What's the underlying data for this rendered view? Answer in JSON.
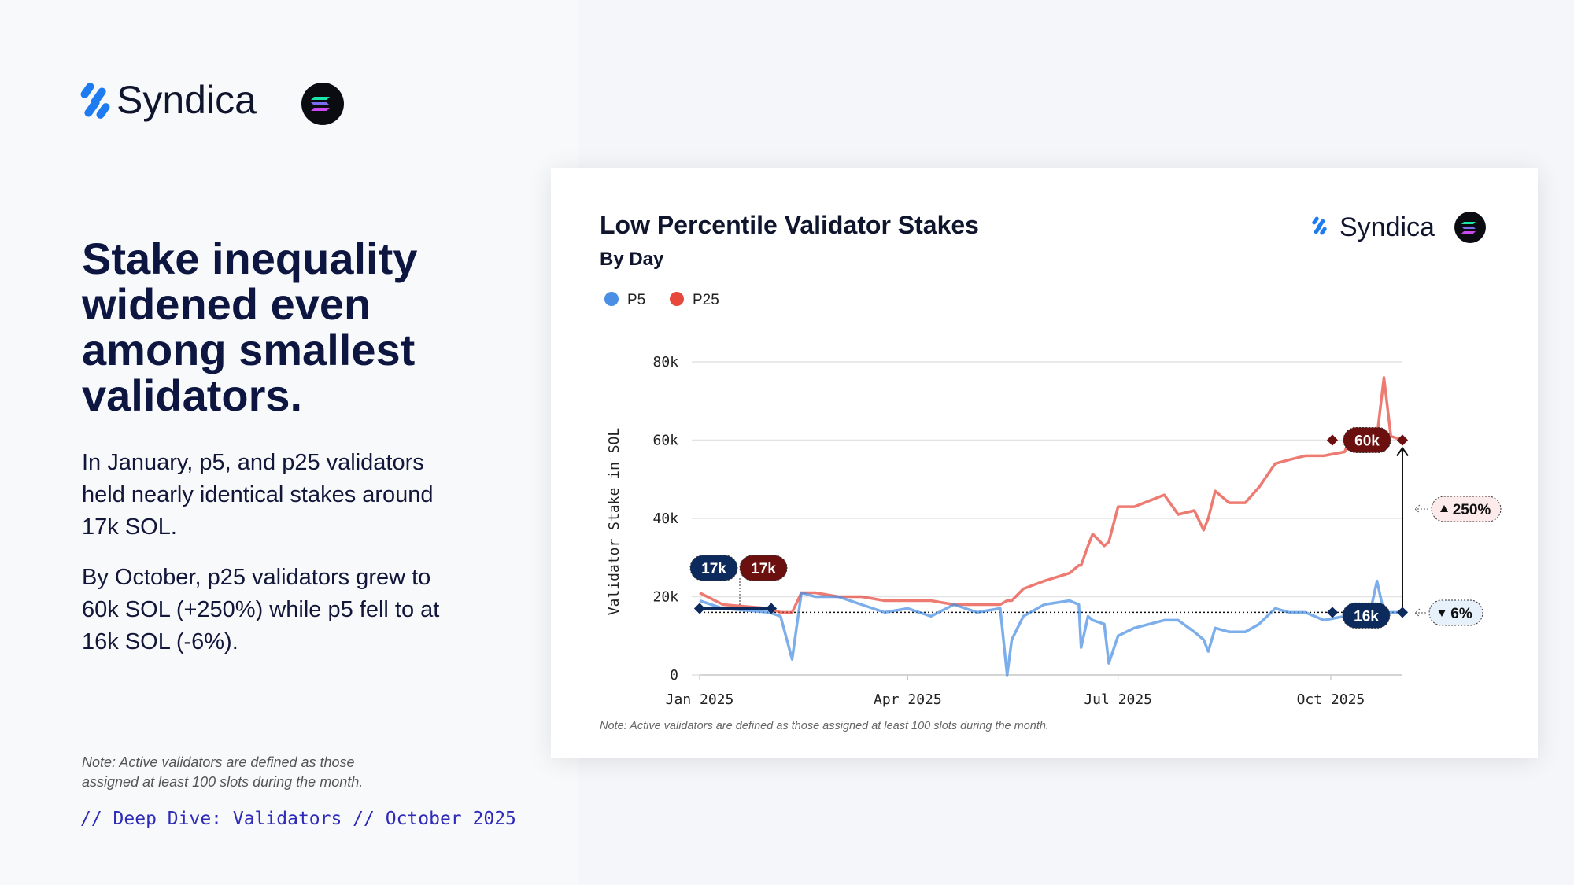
{
  "brand": {
    "name": "Syndica"
  },
  "headline": [
    "Stake inequality",
    "widened even",
    "among smallest",
    "validators."
  ],
  "paragraphs": [
    "In January, p5, and p25 validators held nearly identical stakes around 17k SOL.",
    "By October, p25 validators grew to 60k SOL (+250%) while p5 fell to at 16k SOL (-6%)."
  ],
  "note": "Note: Active validators are defined as those assigned at least 100 slots during the month.",
  "footer": "// Deep Dive: Validators // October 2025",
  "chart_data": {
    "type": "line",
    "title": "Low Percentile Validator Stakes",
    "subtitle": "By Day",
    "brand": "Syndica",
    "y_label": "Validator Stake in SOL",
    "note": "Note: Active validators are defined as those assigned at least 100 slots during the month.",
    "x": [
      0,
      10,
      30,
      35,
      40,
      44,
      50,
      60,
      70,
      80,
      90,
      100,
      110,
      120,
      130,
      133,
      135,
      140,
      149,
      160,
      164,
      165,
      168,
      170,
      175,
      177,
      181,
      188,
      201,
      207,
      214,
      218,
      220,
      223,
      229,
      236,
      242,
      249,
      255,
      262,
      270,
      279,
      283,
      290,
      293,
      296,
      299,
      304
    ],
    "series": [
      {
        "name": "P5",
        "color": "#4a8fe3",
        "values": [
          19000,
          17000,
          16000,
          15000,
          4000,
          21000,
          20000,
          20000,
          18000,
          16000,
          17000,
          15000,
          18000,
          16000,
          17000,
          0,
          9000,
          15000,
          18000,
          19000,
          18000,
          7000,
          15000,
          14000,
          13000,
          3000,
          10000,
          12000,
          14000,
          14000,
          11000,
          9000,
          6000,
          12000,
          11000,
          11000,
          13000,
          17000,
          16000,
          16000,
          14000,
          15000,
          15000,
          16000,
          24000,
          16000,
          16000,
          16000
        ]
      },
      {
        "name": "P25",
        "color": "#e8483c",
        "values": [
          21000,
          18000,
          17000,
          16000,
          16000,
          21000,
          21000,
          20000,
          20000,
          19000,
          19000,
          19000,
          18000,
          18000,
          18000,
          19000,
          19000,
          22000,
          24000,
          26000,
          28000,
          28000,
          33000,
          36000,
          33000,
          34000,
          43000,
          43000,
          46000,
          41000,
          42000,
          37000,
          40000,
          47000,
          44000,
          44000,
          48000,
          54000,
          55000,
          56000,
          56000,
          57000,
          63000,
          61000,
          61000,
          76000,
          61000,
          60000
        ]
      }
    ],
    "xlim": [
      0,
      304
    ],
    "xticks": [
      {
        "value": 0,
        "label": "Jan 2025"
      },
      {
        "value": 90,
        "label": "Apr 2025"
      },
      {
        "value": 181,
        "label": "Jul 2025"
      },
      {
        "value": 273,
        "label": "Oct 2025"
      }
    ],
    "ylim": [
      0,
      80000
    ],
    "yticks": [
      0,
      {
        "value": 20000,
        "label": "20k"
      },
      {
        "value": 40000,
        "label": "40k"
      },
      {
        "value": 60000,
        "label": "60k"
      },
      {
        "value": 80000,
        "label": "80k"
      }
    ],
    "grid": true,
    "legend": "top-left",
    "annotations": [
      "17k",
      "17k",
      "60k",
      "16k",
      "250%",
      "6%"
    ]
  }
}
